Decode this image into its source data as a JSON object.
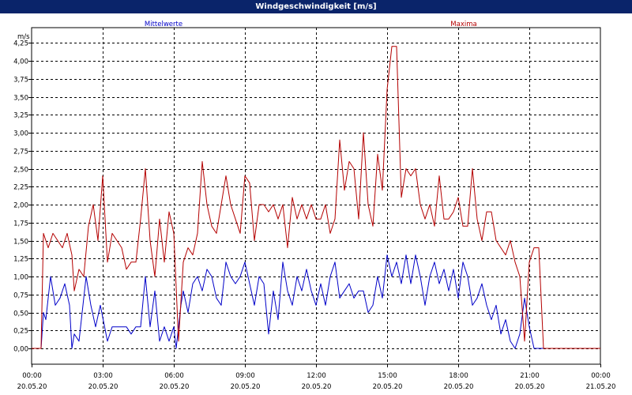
{
  "window_title": "Windgeschwindigkeit [m/s]",
  "colors": {
    "titlebar": "#0a246a",
    "mean": "#0000c8",
    "max": "#b40000",
    "grid": "#000000"
  },
  "chart_data": {
    "type": "line",
    "title": "Windgeschwindigkeit [m/s]",
    "ylabel": "m/s",
    "ylim": [
      0,
      4.4
    ],
    "grid": true,
    "legend": "top",
    "yticks": [
      0,
      0.25,
      0.5,
      0.75,
      1.0,
      1.25,
      1.5,
      1.75,
      2.0,
      2.25,
      2.5,
      2.75,
      3.0,
      3.25,
      3.5,
      3.75,
      4.0,
      4.25
    ],
    "ytick_labels": [
      "0,00",
      "0,25",
      "0,50",
      "0,75",
      "1,00",
      "1,25",
      "1,50",
      "1,75",
      "2,00",
      "2,25",
      "2,50",
      "2,75",
      "3,00",
      "3,25",
      "3,50",
      "3,75",
      "4,00",
      "4,25"
    ],
    "xlim_hours": [
      0,
      24
    ],
    "xticks": [
      {
        "hour": 0,
        "time": "00:00",
        "date": "20.05.20"
      },
      {
        "hour": 3,
        "time": "03:00",
        "date": "20.05.20"
      },
      {
        "hour": 6,
        "time": "06:00",
        "date": "20.05.20"
      },
      {
        "hour": 9,
        "time": "09:00",
        "date": "20.05.20"
      },
      {
        "hour": 12,
        "time": "12:00",
        "date": "20.05.20"
      },
      {
        "hour": 15,
        "time": "15:00",
        "date": "20.05.20"
      },
      {
        "hour": 18,
        "time": "18:00",
        "date": "20.05.20"
      },
      {
        "hour": 21,
        "time": "21:00",
        "date": "20.05.20"
      },
      {
        "hour": 24,
        "time": "00:00",
        "date": "21.05.20"
      }
    ],
    "series": [
      {
        "name": "Mittelwerte",
        "color": "#0000c8",
        "points": [
          [
            0,
            0
          ],
          [
            0.4,
            0
          ],
          [
            0.5,
            0.5
          ],
          [
            0.6,
            0.4
          ],
          [
            0.8,
            1.0
          ],
          [
            1.0,
            0.6
          ],
          [
            1.2,
            0.7
          ],
          [
            1.4,
            0.9
          ],
          [
            1.6,
            0.6
          ],
          [
            1.7,
            0.0
          ],
          [
            1.8,
            0.2
          ],
          [
            2.0,
            0.1
          ],
          [
            2.3,
            1.0
          ],
          [
            2.5,
            0.6
          ],
          [
            2.7,
            0.3
          ],
          [
            2.9,
            0.6
          ],
          [
            3.2,
            0.1
          ],
          [
            3.4,
            0.3
          ],
          [
            3.6,
            0.3
          ],
          [
            3.8,
            0.3
          ],
          [
            4.0,
            0.3
          ],
          [
            4.2,
            0.2
          ],
          [
            4.4,
            0.3
          ],
          [
            4.6,
            0.3
          ],
          [
            4.8,
            1.0
          ],
          [
            5.0,
            0.3
          ],
          [
            5.2,
            0.8
          ],
          [
            5.4,
            0.1
          ],
          [
            5.6,
            0.3
          ],
          [
            5.8,
            0.1
          ],
          [
            6.0,
            0.3
          ],
          [
            6.1,
            0.0
          ],
          [
            6.3,
            0.6
          ],
          [
            6.4,
            0.8
          ],
          [
            6.6,
            0.5
          ],
          [
            6.8,
            0.9
          ],
          [
            7.0,
            1.0
          ],
          [
            7.2,
            0.8
          ],
          [
            7.4,
            1.1
          ],
          [
            7.6,
            1.0
          ],
          [
            7.8,
            0.7
          ],
          [
            8.0,
            0.6
          ],
          [
            8.2,
            1.2
          ],
          [
            8.4,
            1.0
          ],
          [
            8.6,
            0.9
          ],
          [
            8.8,
            1.0
          ],
          [
            9.0,
            1.2
          ],
          [
            9.2,
            0.9
          ],
          [
            9.4,
            0.6
          ],
          [
            9.6,
            1.0
          ],
          [
            9.8,
            0.9
          ],
          [
            10.0,
            0.2
          ],
          [
            10.2,
            0.8
          ],
          [
            10.4,
            0.4
          ],
          [
            10.6,
            1.2
          ],
          [
            10.8,
            0.8
          ],
          [
            11.0,
            0.6
          ],
          [
            11.2,
            1.0
          ],
          [
            11.4,
            0.8
          ],
          [
            11.6,
            1.1
          ],
          [
            11.8,
            0.8
          ],
          [
            12.0,
            0.6
          ],
          [
            12.2,
            0.9
          ],
          [
            12.4,
            0.6
          ],
          [
            12.6,
            1.0
          ],
          [
            12.8,
            1.2
          ],
          [
            13.0,
            0.7
          ],
          [
            13.2,
            0.8
          ],
          [
            13.4,
            0.9
          ],
          [
            13.6,
            0.7
          ],
          [
            13.8,
            0.8
          ],
          [
            14.0,
            0.8
          ],
          [
            14.2,
            0.5
          ],
          [
            14.4,
            0.6
          ],
          [
            14.6,
            1.0
          ],
          [
            14.8,
            0.7
          ],
          [
            15.0,
            1.3
          ],
          [
            15.2,
            1.0
          ],
          [
            15.4,
            1.2
          ],
          [
            15.6,
            0.9
          ],
          [
            15.8,
            1.3
          ],
          [
            16.0,
            0.9
          ],
          [
            16.2,
            1.3
          ],
          [
            16.4,
            1.0
          ],
          [
            16.6,
            0.6
          ],
          [
            16.8,
            1.0
          ],
          [
            17.0,
            1.2
          ],
          [
            17.2,
            0.9
          ],
          [
            17.4,
            1.1
          ],
          [
            17.6,
            0.8
          ],
          [
            17.8,
            1.1
          ],
          [
            18.0,
            0.7
          ],
          [
            18.2,
            1.2
          ],
          [
            18.4,
            1.0
          ],
          [
            18.6,
            0.6
          ],
          [
            18.8,
            0.7
          ],
          [
            19.0,
            0.9
          ],
          [
            19.2,
            0.6
          ],
          [
            19.4,
            0.4
          ],
          [
            19.6,
            0.6
          ],
          [
            19.8,
            0.2
          ],
          [
            20.0,
            0.4
          ],
          [
            20.2,
            0.1
          ],
          [
            20.4,
            0.0
          ],
          [
            20.6,
            0.2
          ],
          [
            20.8,
            0.7
          ],
          [
            21.0,
            0.3
          ],
          [
            21.2,
            0.0
          ],
          [
            24.0,
            0.0
          ]
        ]
      },
      {
        "name": "Maxima",
        "color": "#b40000",
        "points": [
          [
            0,
            0
          ],
          [
            0.4,
            0
          ],
          [
            0.5,
            1.6
          ],
          [
            0.7,
            1.4
          ],
          [
            0.9,
            1.6
          ],
          [
            1.1,
            1.5
          ],
          [
            1.3,
            1.4
          ],
          [
            1.5,
            1.6
          ],
          [
            1.7,
            1.3
          ],
          [
            1.8,
            0.8
          ],
          [
            2.0,
            1.1
          ],
          [
            2.2,
            1.0
          ],
          [
            2.4,
            1.7
          ],
          [
            2.6,
            2.0
          ],
          [
            2.8,
            1.5
          ],
          [
            3.0,
            2.4
          ],
          [
            3.2,
            1.2
          ],
          [
            3.4,
            1.6
          ],
          [
            3.6,
            1.5
          ],
          [
            3.8,
            1.4
          ],
          [
            4.0,
            1.1
          ],
          [
            4.2,
            1.2
          ],
          [
            4.4,
            1.2
          ],
          [
            4.6,
            1.8
          ],
          [
            4.8,
            2.5
          ],
          [
            5.0,
            1.5
          ],
          [
            5.2,
            1.0
          ],
          [
            5.4,
            1.8
          ],
          [
            5.6,
            1.2
          ],
          [
            5.8,
            1.9
          ],
          [
            6.0,
            1.6
          ],
          [
            6.2,
            0.1
          ],
          [
            6.4,
            1.2
          ],
          [
            6.6,
            1.4
          ],
          [
            6.8,
            1.3
          ],
          [
            7.0,
            1.6
          ],
          [
            7.2,
            2.6
          ],
          [
            7.4,
            2.0
          ],
          [
            7.6,
            1.7
          ],
          [
            7.8,
            1.6
          ],
          [
            8.0,
            2.0
          ],
          [
            8.2,
            2.4
          ],
          [
            8.4,
            2.0
          ],
          [
            8.6,
            1.8
          ],
          [
            8.8,
            1.6
          ],
          [
            9.0,
            2.4
          ],
          [
            9.2,
            2.3
          ],
          [
            9.4,
            1.5
          ],
          [
            9.6,
            2.0
          ],
          [
            9.8,
            2.0
          ],
          [
            10.0,
            1.9
          ],
          [
            10.2,
            2.0
          ],
          [
            10.4,
            1.8
          ],
          [
            10.6,
            2.0
          ],
          [
            10.8,
            1.4
          ],
          [
            11.0,
            2.1
          ],
          [
            11.2,
            1.8
          ],
          [
            11.4,
            2.0
          ],
          [
            11.6,
            1.8
          ],
          [
            11.8,
            2.0
          ],
          [
            12.0,
            1.8
          ],
          [
            12.2,
            1.8
          ],
          [
            12.4,
            2.0
          ],
          [
            12.6,
            1.6
          ],
          [
            12.8,
            1.8
          ],
          [
            13.0,
            2.9
          ],
          [
            13.2,
            2.2
          ],
          [
            13.4,
            2.6
          ],
          [
            13.6,
            2.5
          ],
          [
            13.8,
            1.8
          ],
          [
            14.0,
            3.0
          ],
          [
            14.2,
            2.0
          ],
          [
            14.4,
            1.7
          ],
          [
            14.6,
            2.7
          ],
          [
            14.8,
            2.2
          ],
          [
            15.0,
            3.6
          ],
          [
            15.2,
            4.2
          ],
          [
            15.4,
            4.2
          ],
          [
            15.6,
            2.1
          ],
          [
            15.8,
            2.5
          ],
          [
            16.0,
            2.4
          ],
          [
            16.2,
            2.5
          ],
          [
            16.4,
            2.0
          ],
          [
            16.6,
            1.8
          ],
          [
            16.8,
            2.0
          ],
          [
            17.0,
            1.7
          ],
          [
            17.2,
            2.4
          ],
          [
            17.4,
            1.8
          ],
          [
            17.6,
            1.8
          ],
          [
            17.8,
            1.9
          ],
          [
            18.0,
            2.1
          ],
          [
            18.2,
            1.7
          ],
          [
            18.4,
            1.7
          ],
          [
            18.6,
            2.5
          ],
          [
            18.8,
            1.8
          ],
          [
            19.0,
            1.5
          ],
          [
            19.2,
            1.9
          ],
          [
            19.4,
            1.9
          ],
          [
            19.6,
            1.5
          ],
          [
            19.8,
            1.4
          ],
          [
            20.0,
            1.3
          ],
          [
            20.2,
            1.5
          ],
          [
            20.4,
            1.2
          ],
          [
            20.6,
            1.0
          ],
          [
            20.8,
            0.1
          ],
          [
            21.0,
            1.2
          ],
          [
            21.2,
            1.4
          ],
          [
            21.4,
            1.4
          ],
          [
            21.6,
            0.0
          ],
          [
            24.0,
            0.0
          ]
        ]
      }
    ]
  }
}
